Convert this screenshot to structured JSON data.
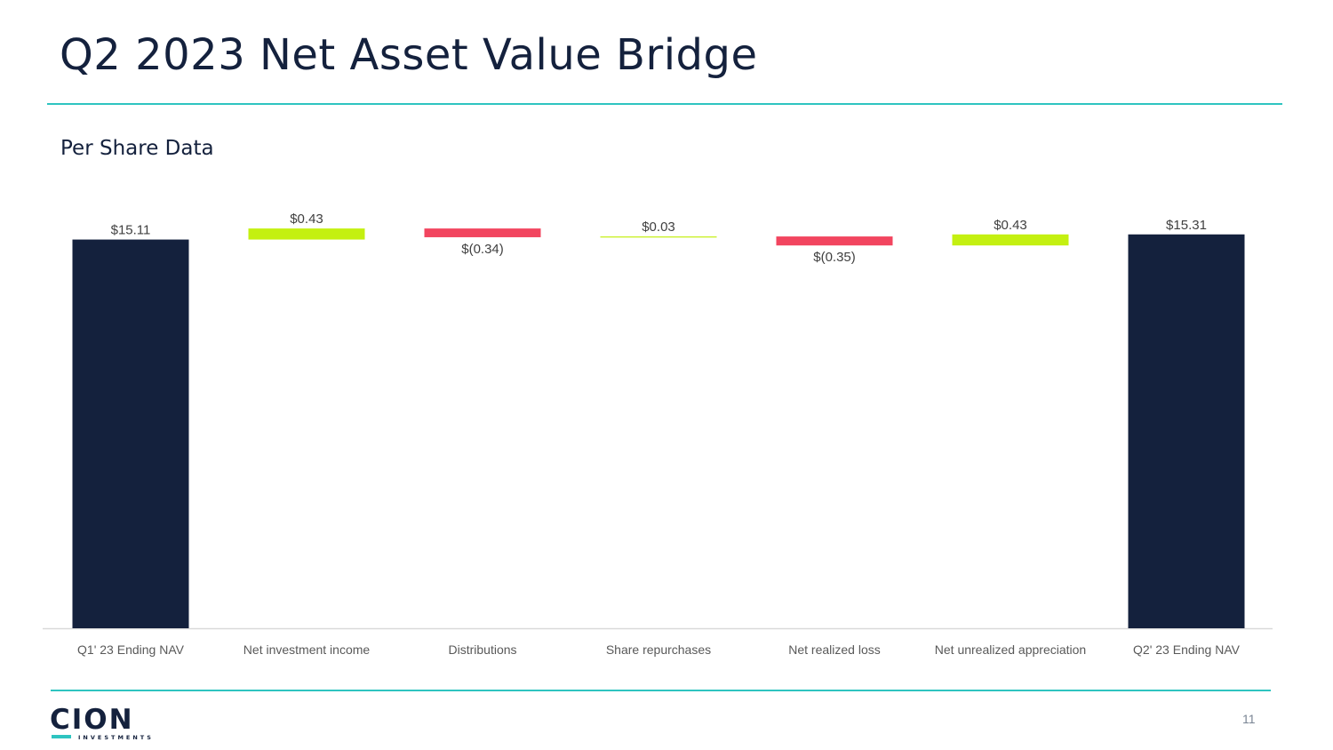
{
  "slide": {
    "title": "Q2 2023 Net Asset Value Bridge",
    "subtitle": "Per Share Data",
    "page_number": "11",
    "logo": {
      "word": "CION",
      "sub": "INVESTMENTS"
    }
  },
  "colors": {
    "navy": "#14213d",
    "increase": "#c4f011",
    "decrease": "#f2455f",
    "accent_rule": "#2ec4c0"
  },
  "chart_data": {
    "type": "waterfall",
    "title": "Per Share Data",
    "categories": [
      "Q1' 23 Ending NAV",
      "Net investment income",
      "Distributions",
      "Share repurchases",
      "Net realized loss",
      "Net unrealized appreciation",
      "Q2' 23 Ending NAV"
    ],
    "values": [
      15.11,
      0.43,
      -0.34,
      0.03,
      -0.35,
      0.43,
      15.31
    ],
    "kinds": [
      "total",
      "increase",
      "decrease",
      "increase",
      "decrease",
      "increase",
      "total"
    ],
    "labels": [
      "$15.11",
      "$0.43",
      "$(0.34)",
      "$0.03",
      "$(0.35)",
      "$0.43",
      "$15.31"
    ],
    "ylim": [
      0,
      15.6
    ],
    "grid": false,
    "legend": "none"
  }
}
